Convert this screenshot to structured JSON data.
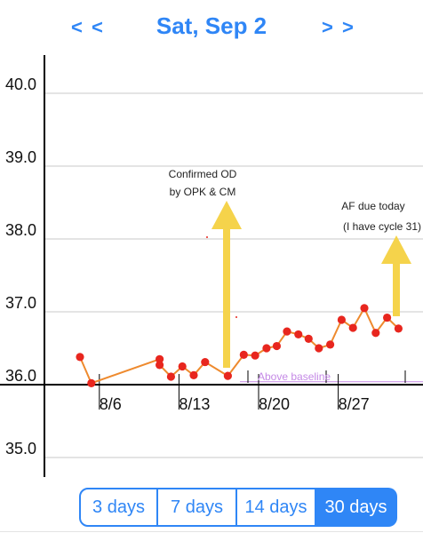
{
  "header": {
    "prev_label": "< <",
    "title": "Sat, Sep 2",
    "next_label": "> >"
  },
  "chart_data": {
    "type": "line",
    "y_ticks": [
      "40.0",
      "39.0",
      "38.0",
      "37.0",
      "36.0",
      "35.0"
    ],
    "x_ticks": [
      "8/6",
      "8/13",
      "8/20",
      "8/27"
    ],
    "ylim": [
      34.8,
      40.8
    ],
    "grid": true,
    "baseline": 36.04,
    "series": [
      {
        "color": "#ee8a2e",
        "point_color": "#e8261e",
        "points": [
          {
            "d": 0,
            "v": 36.38
          },
          {
            "d": 1,
            "v": 36.02
          },
          {
            "d": 7,
            "v": 36.35
          },
          {
            "d": 7,
            "v": 36.27
          },
          {
            "d": 8,
            "v": 36.11
          },
          {
            "d": 9,
            "v": 36.25
          },
          {
            "d": 10,
            "v": 36.13
          },
          {
            "d": 11,
            "v": 36.31
          },
          {
            "d": 13,
            "v": 36.12
          },
          {
            "d": 14.4,
            "v": 36.41
          },
          {
            "d": 15.4,
            "v": 36.4
          },
          {
            "d": 16.4,
            "v": 36.5
          },
          {
            "d": 17.3,
            "v": 36.53
          },
          {
            "d": 18.2,
            "v": 36.73
          },
          {
            "d": 19.2,
            "v": 36.69
          },
          {
            "d": 20.1,
            "v": 36.63
          },
          {
            "d": 21,
            "v": 36.5
          },
          {
            "d": 22,
            "v": 36.55
          },
          {
            "d": 23,
            "v": 36.89
          },
          {
            "d": 24,
            "v": 36.78
          },
          {
            "d": 25,
            "v": 37.05
          },
          {
            "d": 26,
            "v": 36.71
          },
          {
            "d": 27,
            "v": 36.92
          },
          {
            "d": 28,
            "v": 36.77
          }
        ]
      }
    ],
    "annotations": [
      {
        "lines": [
          "Confirmed OD",
          "by OPK & CM"
        ],
        "color": "#222222"
      },
      {
        "lines": [
          "AF due today",
          "(I have cycle 31)"
        ],
        "color": "#222222"
      },
      {
        "text": "Above baseline",
        "color": "#c58ae6"
      }
    ],
    "arrow_color": "#f5d34b"
  },
  "segments": [
    {
      "label": "3 days",
      "active": false
    },
    {
      "label": "7 days",
      "active": false
    },
    {
      "label": "14 days",
      "active": false
    },
    {
      "label": "30 days",
      "active": true
    }
  ]
}
